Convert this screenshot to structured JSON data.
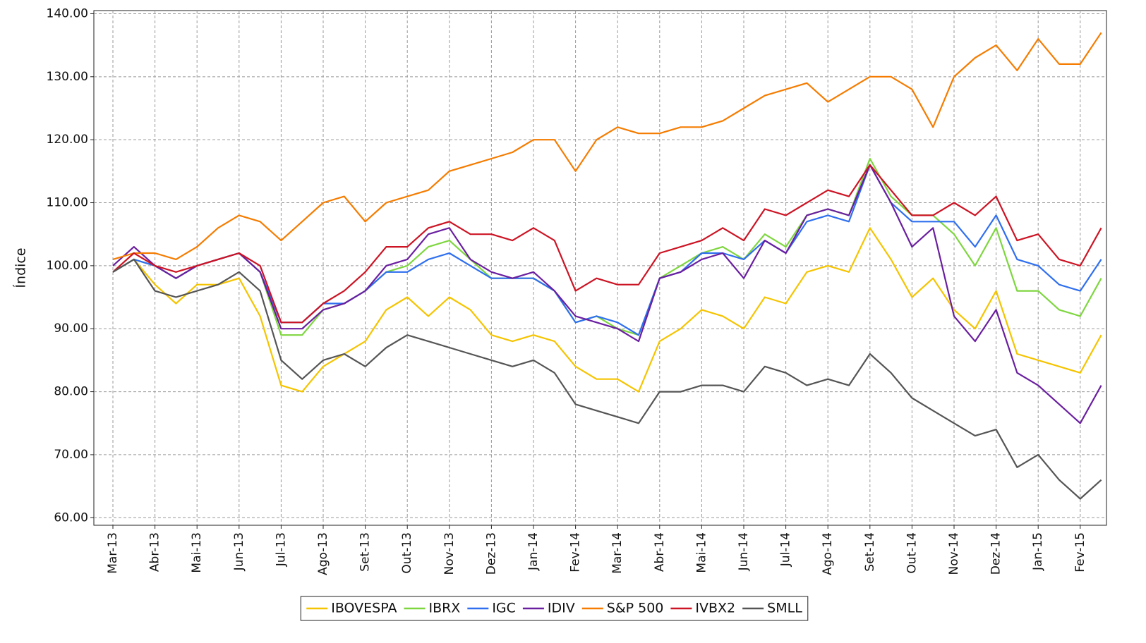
{
  "chart_data": {
    "type": "line",
    "ylabel": "Índice",
    "categories": [
      "Mar-13",
      null,
      "Abr-13",
      null,
      "Mai-13",
      null,
      "Jun-13",
      null,
      "Jul-13",
      null,
      "Ago-13",
      null,
      "Set-13",
      null,
      "Out-13",
      null,
      "Nov-13",
      null,
      "Dez-13",
      null,
      "Jan-14",
      null,
      "Fev-14",
      null,
      "Mar-14",
      null,
      "Abr-14",
      null,
      "Mai-14",
      null,
      "Jun-14",
      null,
      "Jul-14",
      null,
      "Ago-14",
      null,
      "Set-14",
      null,
      "Out-14",
      null,
      "Nov-14",
      null,
      "Dez-14",
      null,
      "Jan-15",
      null,
      "Fev-15",
      null
    ],
    "ylim": [
      58.8,
      140.5
    ],
    "yticks": [
      {
        "value": 60,
        "label": "60.00"
      },
      {
        "value": 70,
        "label": "70.00"
      },
      {
        "value": 80,
        "label": "80.00"
      },
      {
        "value": 90,
        "label": "90.00"
      },
      {
        "value": 100,
        "label": "100.00"
      },
      {
        "value": 110,
        "label": "110.00"
      },
      {
        "value": 120,
        "label": "120.00"
      },
      {
        "value": 130,
        "label": "130.00"
      },
      {
        "value": 140,
        "label": "140.00"
      }
    ],
    "grid": true,
    "legend": "bottom",
    "series": [
      {
        "name": "IBOVESPA",
        "color": "#f5c400",
        "values": [
          99,
          101,
          97,
          94,
          97,
          97,
          98,
          92,
          81,
          80,
          84,
          86,
          88,
          93,
          95,
          92,
          95,
          93,
          89,
          88,
          89,
          88,
          84,
          82,
          82,
          80,
          88,
          90,
          93,
          92,
          90,
          95,
          94,
          99,
          100,
          99,
          106,
          101,
          95,
          98,
          93,
          90,
          96,
          86,
          85,
          84,
          83,
          89
        ]
      },
      {
        "name": "IBRX",
        "color": "#7ed63f",
        "values": [
          99,
          101,
          100,
          98,
          100,
          101,
          102,
          99,
          89,
          89,
          93,
          94,
          96,
          99,
          100,
          103,
          104,
          101,
          98,
          98,
          98,
          96,
          91,
          92,
          90,
          89,
          98,
          100,
          102,
          103,
          101,
          105,
          103,
          108,
          109,
          108,
          117,
          111,
          108,
          108,
          105,
          100,
          106,
          96,
          96,
          93,
          92,
          98
        ]
      },
      {
        "name": "IGC",
        "color": "#2f6fef",
        "values": [
          99,
          101,
          100,
          98,
          100,
          101,
          102,
          99,
          91,
          91,
          94,
          94,
          96,
          99,
          99,
          101,
          102,
          100,
          98,
          98,
          98,
          96,
          91,
          92,
          91,
          89,
          98,
          99,
          102,
          102,
          101,
          104,
          102,
          107,
          108,
          107,
          116,
          110,
          107,
          107,
          107,
          103,
          108,
          101,
          100,
          97,
          96,
          101
        ]
      },
      {
        "name": "IDIV",
        "color": "#6a1fa0",
        "values": [
          100,
          103,
          100,
          98,
          100,
          101,
          102,
          99,
          90,
          90,
          93,
          94,
          96,
          100,
          101,
          105,
          106,
          101,
          99,
          98,
          99,
          96,
          92,
          91,
          90,
          88,
          98,
          99,
          101,
          102,
          98,
          104,
          102,
          108,
          109,
          108,
          116,
          110,
          103,
          106,
          92,
          88,
          93,
          83,
          81,
          78,
          75,
          81
        ]
      },
      {
        "name": "S&P 500",
        "color": "#f57c00",
        "values": [
          101,
          102,
          102,
          101,
          103,
          106,
          108,
          107,
          104,
          107,
          110,
          111,
          107,
          110,
          111,
          112,
          115,
          116,
          117,
          118,
          120,
          120,
          115,
          120,
          122,
          121,
          121,
          122,
          122,
          123,
          125,
          127,
          128,
          129,
          126,
          128,
          130,
          130,
          128,
          122,
          130,
          133,
          135,
          131,
          136,
          132,
          132,
          137
        ]
      },
      {
        "name": "IVBX2",
        "color": "#cc1424",
        "values": [
          99,
          102,
          100,
          99,
          100,
          101,
          102,
          100,
          91,
          91,
          94,
          96,
          99,
          103,
          103,
          106,
          107,
          105,
          105,
          104,
          106,
          104,
          96,
          98,
          97,
          97,
          102,
          103,
          104,
          106,
          104,
          109,
          108,
          110,
          112,
          111,
          116,
          112,
          108,
          108,
          110,
          108,
          111,
          104,
          105,
          101,
          100,
          106
        ]
      },
      {
        "name": "SMLL",
        "color": "#555555",
        "values": [
          99,
          101,
          96,
          95,
          96,
          97,
          99,
          96,
          85,
          82,
          85,
          86,
          84,
          87,
          89,
          88,
          87,
          86,
          85,
          84,
          85,
          83,
          78,
          77,
          76,
          75,
          80,
          80,
          81,
          81,
          80,
          84,
          83,
          81,
          82,
          81,
          86,
          83,
          79,
          77,
          75,
          73,
          74,
          68,
          70,
          66,
          63,
          66
        ]
      }
    ]
  }
}
